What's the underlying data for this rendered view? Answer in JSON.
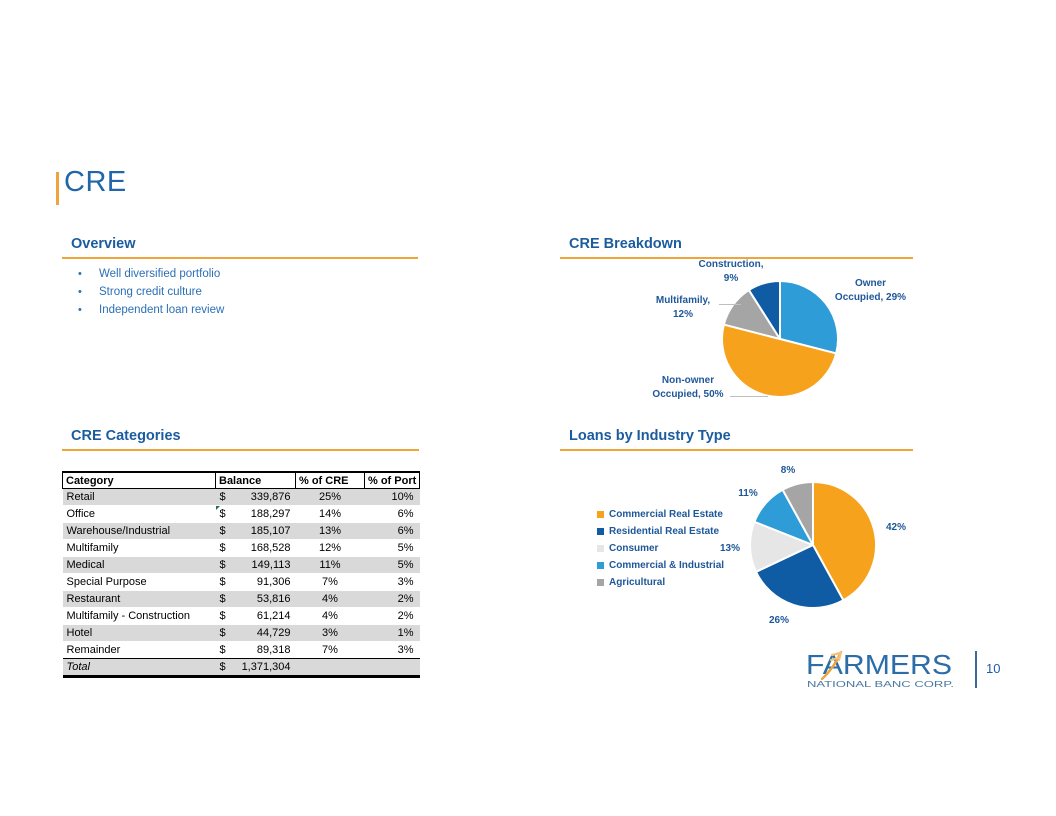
{
  "slide": {
    "title": "CRE",
    "page_number": "10"
  },
  "overview": {
    "heading": "Overview",
    "bullets": [
      "Well diversified portfolio",
      "Strong credit culture",
      "Independent loan review"
    ]
  },
  "cre_breakdown": {
    "heading": "CRE Breakdown"
  },
  "cre_categories": {
    "heading": "CRE Categories",
    "currency": "$",
    "headers": [
      "Category",
      "Balance",
      "% of CRE",
      "% of Port"
    ],
    "rows": [
      {
        "category": "Retail",
        "balance": "339,876",
        "pct_cre": "25%",
        "pct_port": "10%"
      },
      {
        "category": "Office",
        "balance": "188,297",
        "pct_cre": "14%",
        "pct_port": "6%",
        "flag": true
      },
      {
        "category": "Warehouse/Industrial",
        "balance": "185,107",
        "pct_cre": "13%",
        "pct_port": "6%"
      },
      {
        "category": "Multifamily",
        "balance": "168,528",
        "pct_cre": "12%",
        "pct_port": "5%"
      },
      {
        "category": "Medical",
        "balance": "149,113",
        "pct_cre": "11%",
        "pct_port": "5%"
      },
      {
        "category": "Special Purpose",
        "balance": "91,306",
        "pct_cre": "7%",
        "pct_port": "3%"
      },
      {
        "category": "Restaurant",
        "balance": "53,816",
        "pct_cre": "4%",
        "pct_port": "2%"
      },
      {
        "category": "Multifamily - Construction",
        "balance": "61,214",
        "pct_cre": "4%",
        "pct_port": "2%"
      },
      {
        "category": "Hotel",
        "balance": "44,729",
        "pct_cre": "3%",
        "pct_port": "1%"
      },
      {
        "category": "Remainder",
        "balance": "89,318",
        "pct_cre": "7%",
        "pct_port": "3%"
      }
    ],
    "total": {
      "category": "Total",
      "balance": "1,371,304"
    }
  },
  "loans_by_industry": {
    "heading": "Loans by Industry Type"
  },
  "chart_data": [
    {
      "type": "pie",
      "title": "CRE Breakdown",
      "direction": "clockwise",
      "start_angle_deg": 0,
      "legend": "none",
      "slices": [
        {
          "name": "Owner Occupied",
          "value": 29,
          "color": "#2D9CD7",
          "label_line1": "Owner",
          "label_line2": "Occupied, 29%"
        },
        {
          "name": "Non-owner Occupied",
          "value": 50,
          "color": "#F6A21D",
          "label_line1": "Non-owner",
          "label_line2": "Occupied, 50%"
        },
        {
          "name": "Multifamily",
          "value": 12,
          "color": "#A5A5A5",
          "label_line1": "Multifamily,",
          "label_line2": "12%"
        },
        {
          "name": "Construction",
          "value": 9,
          "color": "#0F5BA4",
          "label_line1": "Construction,",
          "label_line2": "9%"
        }
      ]
    },
    {
      "type": "pie",
      "title": "Loans by Industry Type",
      "direction": "clockwise",
      "start_angle_deg": 0,
      "legend": "left",
      "slices": [
        {
          "name": "Commercial Real Estate",
          "value": 42,
          "color": "#F6A21D",
          "label": "42%"
        },
        {
          "name": "Residential Real Estate",
          "value": 26,
          "color": "#0F5BA4",
          "label": "26%"
        },
        {
          "name": "Consumer",
          "value": 13,
          "color": "#E6E6E6",
          "label": "13%"
        },
        {
          "name": "Commercial & Industrial",
          "value": 11,
          "color": "#2D9CD7",
          "label": "11%"
        },
        {
          "name": "Agricultural",
          "value": 8,
          "color": "#A5A5A5",
          "label": "8%"
        }
      ]
    }
  ],
  "logo": {
    "wordmark": "FARMERS",
    "subtitle": "NATIONAL BANC CORP."
  },
  "colors": {
    "accent_orange": "#F0A43C",
    "heading_blue": "#1B5C9E",
    "bullet_blue": "#2B6FB5",
    "label_navy": "#1E5799",
    "table_shade": "#D9D9D9",
    "logo_blue": "#2C6DA8",
    "logo_subtitle_blue": "#49779F",
    "pie_orange": "#F6A21D",
    "pie_light_blue": "#2D9CD7",
    "pie_dark_blue": "#0F5BA4",
    "pie_gray": "#A5A5A5",
    "pie_light_gray": "#E6E6E6"
  }
}
